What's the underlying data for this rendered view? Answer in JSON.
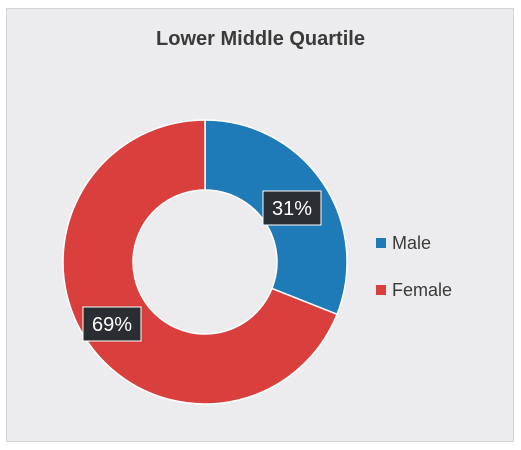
{
  "chart_data": {
    "type": "pie",
    "title": "Lower Middle Quartile",
    "donut": true,
    "slices": [
      {
        "label": "Male",
        "value": 31,
        "display": "31%",
        "color": "#1f7bb8"
      },
      {
        "label": "Female",
        "value": 69,
        "display": "69%",
        "color": "#d9403d"
      }
    ],
    "legend_position": "right"
  }
}
